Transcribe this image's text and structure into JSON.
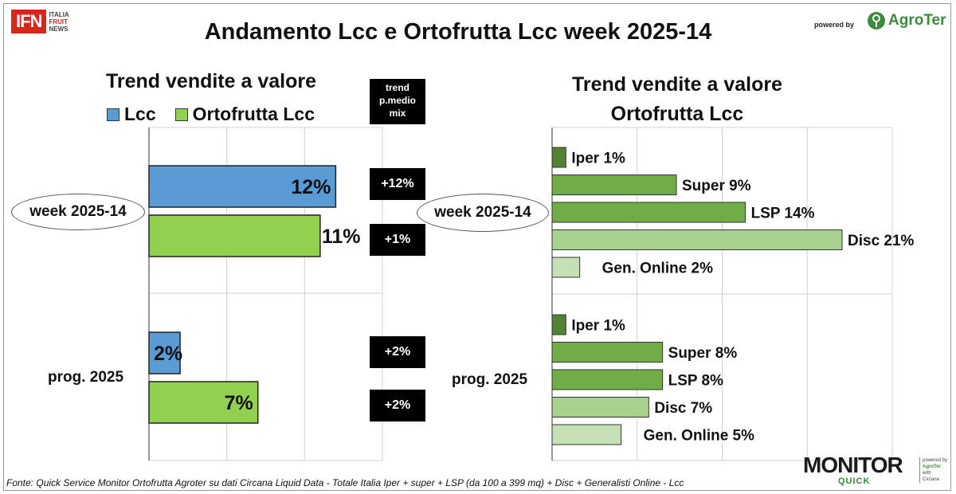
{
  "header": {
    "title": "Andamento Lcc e Ortofrutta Lcc week 2025-14",
    "ifn_logo": "IFN",
    "ifn_side": [
      "ITALIA",
      "FRUIT",
      "NEWS"
    ],
    "powered_by": "powered by",
    "agroter": "AgroTer"
  },
  "left_panel": {
    "title": "Trend vendite a valore",
    "legend": [
      {
        "label": "Lcc",
        "color": "#5b9bd5"
      },
      {
        "label": "Ortofrutta Lcc",
        "color": "#92d050"
      }
    ],
    "trend_header": [
      "trend",
      "p.medio",
      "mix"
    ],
    "groups": [
      {
        "label": "week 2025-14",
        "trend_boxes": [
          "+12%",
          "+1%"
        ]
      },
      {
        "label": "prog. 2025",
        "trend_boxes": [
          "+2%",
          "+2%"
        ]
      }
    ]
  },
  "right_panel": {
    "title_line1": "Trend vendite a valore",
    "title_line2": "Ortofrutta Lcc",
    "groups": [
      {
        "label": "week 2025-14"
      },
      {
        "label": "prog. 2025"
      }
    ]
  },
  "footer": {
    "source": "Fonte: Quick Service Monitor Ortofrutta Agroter su dati Circana Liquid Data - Totale Italia Iper + super + LSP (da 100 a 399 mq) + Disc + Generalisti Online - Lcc",
    "monitor": "MONITOR",
    "quick": "QUICK",
    "side": [
      "powered by",
      "AgroTer",
      "with",
      "Circana"
    ]
  },
  "chart_data": [
    {
      "type": "bar",
      "orientation": "horizontal",
      "title": "Trend vendite a valore",
      "categories": [
        "week 2025-14",
        "prog. 2025"
      ],
      "series": [
        {
          "name": "Lcc",
          "color": "#5b9bd5",
          "values": [
            12,
            2
          ]
        },
        {
          "name": "Ortofrutta Lcc",
          "color": "#92d050",
          "values": [
            11,
            7
          ]
        }
      ],
      "value_labels": [
        [
          "12%",
          "2%"
        ],
        [
          "11%",
          "7%"
        ]
      ],
      "xlim": [
        0,
        15
      ],
      "grid": true
    },
    {
      "type": "bar",
      "orientation": "horizontal",
      "title": "Trend vendite a valore Ortofrutta Lcc",
      "xlim": [
        0,
        21
      ],
      "grid": true,
      "groups": [
        {
          "name": "week 2025-14",
          "bars": [
            {
              "label": "Iper 1%",
              "value": 1,
              "color": "#548235"
            },
            {
              "label": "Super 9%",
              "value": 9,
              "color": "#70ad47"
            },
            {
              "label": "LSP 14%",
              "value": 14,
              "color": "#70ad47"
            },
            {
              "label": "Disc 21%",
              "value": 21,
              "color": "#a9d18e"
            },
            {
              "label": "Gen. Online 2%",
              "value": 2,
              "color": "#c5e0b4"
            }
          ]
        },
        {
          "name": "prog. 2025",
          "bars": [
            {
              "label": "Iper 1%",
              "value": 1,
              "color": "#548235"
            },
            {
              "label": "Super 8%",
              "value": 8,
              "color": "#70ad47"
            },
            {
              "label": "LSP 8%",
              "value": 8,
              "color": "#70ad47"
            },
            {
              "label": "Disc 7%",
              "value": 7,
              "color": "#a9d18e"
            },
            {
              "label": "Gen. Online 5%",
              "value": 5,
              "color": "#c5e0b4"
            }
          ]
        }
      ]
    }
  ]
}
